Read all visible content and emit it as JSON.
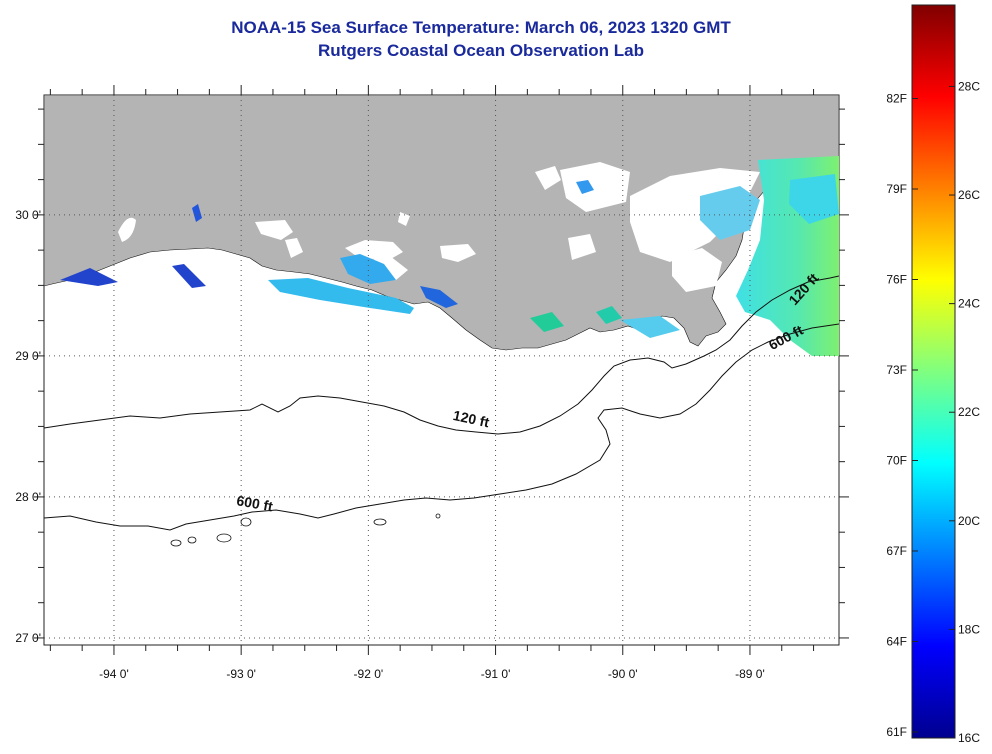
{
  "title": {
    "line1": "NOAA-15 Sea Surface Temperature:  March 06, 2023 1320 GMT",
    "line2": "Rutgers Coastal Ocean Observation Lab"
  },
  "map": {
    "lon_range": [
      -94.55,
      -88.3
    ],
    "lat_range": [
      26.95,
      30.85
    ],
    "lon_ticks": [
      {
        "value": -94,
        "label": "-94 0'"
      },
      {
        "value": -93,
        "label": "-93 0'"
      },
      {
        "value": -92,
        "label": "-92 0'"
      },
      {
        "value": -91,
        "label": "-91 0'"
      },
      {
        "value": -90,
        "label": "-90 0'"
      },
      {
        "value": -89,
        "label": "-89 0'"
      }
    ],
    "lat_ticks": [
      {
        "value": 30,
        "label": "30 0'"
      },
      {
        "value": 29,
        "label": "29 0'"
      },
      {
        "value": 28,
        "label": "28 0'"
      },
      {
        "value": 27,
        "label": "27 0'"
      }
    ],
    "land_color": "#b4b4b4",
    "grid": "dotted",
    "contour_labels": [
      {
        "text": "120 ft",
        "lon": -91.2,
        "lat": 28.52
      },
      {
        "text": "600 ft",
        "lon": -92.9,
        "lat": 27.92
      },
      {
        "text": "120 ft",
        "lon": -88.55,
        "lat": 29.45
      },
      {
        "text": "600 ft",
        "lon": -88.7,
        "lat": 29.1
      }
    ]
  },
  "colorbar": {
    "min_c": 16,
    "max_c": 29.5,
    "celsius_ticks": [
      {
        "value": 16,
        "label": "16C"
      },
      {
        "value": 18,
        "label": "18C"
      },
      {
        "value": 20,
        "label": "20C"
      },
      {
        "value": 22,
        "label": "22C"
      },
      {
        "value": 24,
        "label": "24C"
      },
      {
        "value": 26,
        "label": "26C"
      },
      {
        "value": 28,
        "label": "28C"
      }
    ],
    "fahrenheit_ticks": [
      {
        "value": 61,
        "label": "61F"
      },
      {
        "value": 64,
        "label": "64F"
      },
      {
        "value": 67,
        "label": "67F"
      },
      {
        "value": 70,
        "label": "70F"
      },
      {
        "value": 73,
        "label": "73F"
      },
      {
        "value": 76,
        "label": "76F"
      },
      {
        "value": 79,
        "label": "79F"
      },
      {
        "value": 82,
        "label": "82F"
      }
    ]
  }
}
